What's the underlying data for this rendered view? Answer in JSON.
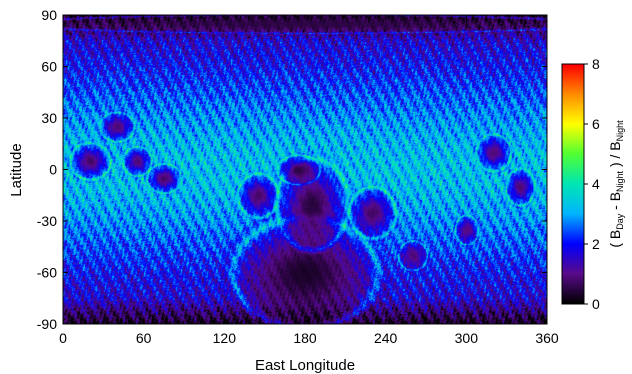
{
  "chart_data": {
    "type": "heatmap",
    "title": "",
    "xlabel": "East Longitude",
    "ylabel": "Latitude",
    "xlim": [
      0,
      360
    ],
    "ylim": [
      -90,
      90
    ],
    "x_ticks": [
      "0",
      "60",
      "120",
      "180",
      "240",
      "300",
      "360"
    ],
    "y_ticks": [
      "90",
      "60",
      "30",
      "0",
      "-30",
      "-60",
      "-90"
    ],
    "colorbar": {
      "label_parts": [
        "( B",
        "Day",
        " - B",
        "Night",
        " ) / B",
        "Night"
      ],
      "range": [
        0,
        8
      ],
      "ticks": [
        "0",
        "2",
        "4",
        "6",
        "8"
      ],
      "colormap": [
        "#000000",
        "#5a0a8a",
        "#0000ff",
        "#00b4ff",
        "#00e6b4",
        "#50ff32",
        "#ffff00",
        "#ff8c00",
        "#ff0000"
      ]
    },
    "features": [
      {
        "lon": 180,
        "lat": -60,
        "value": 0.2,
        "rx": 50,
        "ry": 30
      },
      {
        "lon": 185,
        "lat": -20,
        "value": 0.3,
        "rx": 25,
        "ry": 25
      },
      {
        "lon": 175,
        "lat": 0,
        "value": 0.4,
        "rx": 15,
        "ry": 8
      },
      {
        "lon": 145,
        "lat": -15,
        "value": 0.6,
        "rx": 14,
        "ry": 12
      },
      {
        "lon": 230,
        "lat": -25,
        "value": 0.6,
        "rx": 16,
        "ry": 14
      },
      {
        "lon": 75,
        "lat": -5,
        "value": 0.6,
        "rx": 12,
        "ry": 8
      },
      {
        "lon": 20,
        "lat": 5,
        "value": 0.6,
        "rx": 14,
        "ry": 10
      },
      {
        "lon": 40,
        "lat": 25,
        "value": 0.7,
        "rx": 12,
        "ry": 8
      },
      {
        "lon": 55,
        "lat": 5,
        "value": 0.7,
        "rx": 10,
        "ry": 8
      },
      {
        "lon": 320,
        "lat": 10,
        "value": 0.7,
        "rx": 12,
        "ry": 10
      },
      {
        "lon": 340,
        "lat": -10,
        "value": 0.7,
        "rx": 10,
        "ry": 10
      },
      {
        "lon": 300,
        "lat": -35,
        "value": 0.8,
        "rx": 8,
        "ry": 8
      },
      {
        "lon": 180,
        "lat": 85,
        "value": 0.5,
        "rx": 200,
        "ry": 5
      },
      {
        "lon": 260,
        "lat": -50,
        "value": 0.8,
        "rx": 10,
        "ry": 8
      }
    ]
  }
}
